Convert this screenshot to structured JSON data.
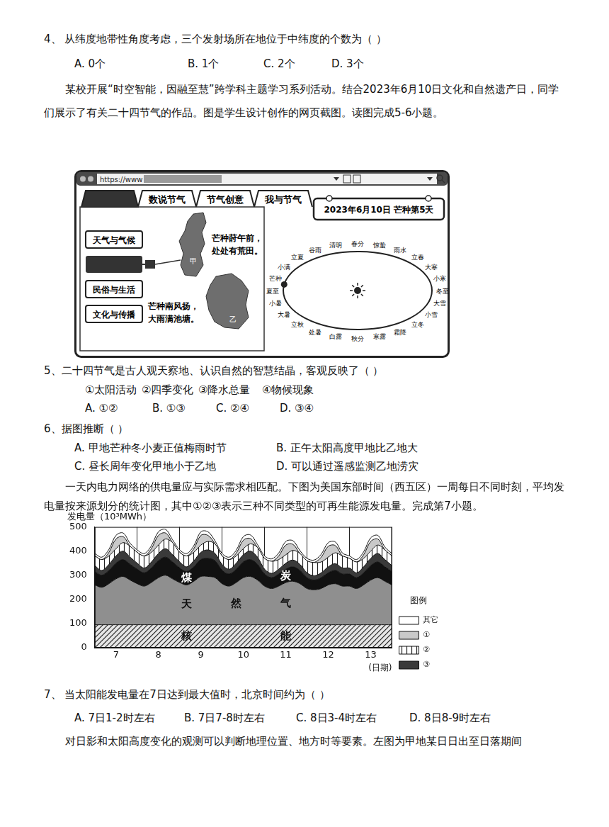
{
  "q4": {
    "stem": "4、 从纬度地带性角度考虑，三个发射场所在地位于中纬度的个数为（    ）",
    "options": [
      "A. 0个",
      "B. 1个",
      "C. 2个",
      "D. 3个"
    ]
  },
  "intro_56": "某校开展“时空智能，因融至慧”跨学科主题学习系列活动。结合2023年6月10日文化和自然遗产日，同学们展示了有关二十四节气的作品。图是学生设计创作的网页截图。读图完成5-6小题。",
  "webpage": {
    "url": "https://www",
    "tabs": [
      null,
      "数说节气",
      "节气创意",
      "我与节气"
    ],
    "date_box": "2023年6月10日  芒种第5天",
    "menu": [
      "天气与气候",
      null,
      "民俗与生活",
      "文化与传播"
    ],
    "regions": [
      {
        "label": "甲",
        "verse": [
          "芒种莳午前，",
          "处处有荒田。"
        ]
      },
      {
        "label": "乙",
        "verse": [
          "芒种南风扬，",
          "大雨满池塘。"
        ]
      }
    ],
    "solar_terms": [
      "夏至",
      "芒种",
      "小满",
      "立夏",
      "谷雨",
      "清明",
      "春分",
      "惊蛰",
      "雨水",
      "立春",
      "大寒",
      "小寒",
      "冬至",
      "大雪",
      "小雪",
      "立冬",
      "霜降",
      "寒露",
      "秋分",
      "白露",
      "处暑",
      "立秋",
      "大暑",
      "小暑"
    ]
  },
  "q5": {
    "stem": "5、二十四节气是古人观天察地、认识自然的智慧结晶，客观反映了（    ）",
    "items": [
      "①太阳活动",
      "②四季变化",
      "③降水总量",
      "④物候现象"
    ],
    "options": [
      "A. ①②",
      "B. ①③",
      "C. ②④",
      "D. ③④"
    ]
  },
  "q6": {
    "stem": "6、据图推断（    ）",
    "options": [
      "A. 甲地芒种冬小麦正值梅雨时节",
      "B. 正午太阳高度甲地比乙地大",
      "C. 昼长周年变化甲地小于乙地",
      "D. 可以通过遥感监测乙地涝灾"
    ]
  },
  "intro_7": "一天内电力网络的供电量应与实际需求相匹配。下图为美国东部时间（西五区）一周每日不同时刻，平均发电量按来源划分的统计图，其中①②③表示三种不同类型的可再生能源发电量。完成第7小题。",
  "chart_data": {
    "type": "stacked_area",
    "y_label": "发电量（10³MWh）",
    "x_label": "(日期)",
    "categories": [
      null,
      null,
      null,
      "7",
      null,
      null,
      null,
      null,
      null,
      "8",
      null,
      null,
      null,
      null,
      null,
      "9",
      null,
      null,
      null,
      null,
      null,
      "10",
      null,
      null,
      null,
      null,
      null,
      "11",
      null,
      null,
      null,
      null,
      null,
      "12",
      null,
      null,
      null,
      null,
      null,
      "13",
      null,
      null,
      null
    ],
    "stacked": true,
    "grid": true,
    "legend": "right",
    "legend_title": "图例",
    "annotations": [
      "核能",
      "天然气",
      "煤炭"
    ],
    "ylim": [
      0,
      500
    ],
    "yticks": [
      0,
      100,
      200,
      300,
      400,
      500
    ],
    "series": [
      {
        "name": "核能",
        "color": "#e6e6e6",
        "values": [
          95,
          95,
          95,
          95,
          95,
          95,
          95,
          95,
          95,
          95,
          95,
          95,
          95,
          95,
          95,
          95,
          95,
          95,
          95,
          95,
          95,
          95,
          95,
          95,
          95,
          95,
          95,
          95,
          95,
          95,
          95,
          95,
          95,
          95,
          95,
          95,
          95,
          95,
          95,
          95,
          95,
          95,
          95
        ]
      },
      {
        "name": "天然气",
        "color": "#8f8f8f",
        "values": [
          165,
          155,
          170,
          190,
          200,
          185,
          170,
          160,
          175,
          195,
          205,
          190,
          175,
          165,
          180,
          200,
          200,
          195,
          170,
          160,
          175,
          195,
          200,
          185,
          160,
          150,
          160,
          175,
          180,
          170,
          150,
          145,
          150,
          165,
          170,
          160,
          160,
          150,
          165,
          185,
          195,
          180,
          165
        ]
      },
      {
        "name": "煤炭",
        "color": "#111111",
        "values": [
          55,
          50,
          55,
          65,
          70,
          65,
          60,
          55,
          60,
          70,
          75,
          70,
          60,
          55,
          60,
          70,
          75,
          70,
          55,
          50,
          55,
          65,
          70,
          65,
          50,
          45,
          50,
          55,
          60,
          55,
          45,
          40,
          45,
          50,
          55,
          50,
          50,
          45,
          50,
          60,
          65,
          60,
          55
        ]
      },
      {
        "name": "③",
        "color": "#3a3a3a",
        "values": [
          25,
          20,
          25,
          30,
          35,
          30,
          25,
          20,
          25,
          30,
          35,
          30,
          25,
          20,
          25,
          30,
          35,
          30,
          25,
          20,
          25,
          30,
          35,
          30,
          20,
          18,
          20,
          25,
          28,
          25,
          20,
          18,
          20,
          25,
          28,
          25,
          25,
          20,
          25,
          30,
          35,
          30,
          25
        ]
      },
      {
        "name": "②",
        "color": "#ffffff",
        "values": [
          40,
          45,
          35,
          30,
          35,
          45,
          45,
          50,
          40,
          35,
          40,
          50,
          40,
          45,
          35,
          30,
          35,
          40,
          35,
          40,
          30,
          25,
          30,
          40,
          45,
          50,
          40,
          35,
          40,
          45,
          50,
          55,
          45,
          40,
          45,
          50,
          40,
          45,
          35,
          30,
          35,
          40,
          40
        ]
      },
      {
        "name": "①",
        "color": "#c9c9c9",
        "values": [
          0,
          0,
          15,
          40,
          25,
          0,
          0,
          0,
          15,
          40,
          25,
          0,
          0,
          0,
          15,
          40,
          25,
          0,
          0,
          0,
          12,
          35,
          22,
          0,
          0,
          0,
          15,
          40,
          25,
          0,
          0,
          0,
          20,
          45,
          30,
          0,
          0,
          0,
          15,
          40,
          25,
          0,
          0
        ]
      },
      {
        "name": "其它",
        "color": "#ffffff",
        "values": [
          10,
          10,
          12,
          15,
          15,
          12,
          10,
          10,
          12,
          15,
          15,
          12,
          10,
          10,
          12,
          15,
          15,
          12,
          10,
          10,
          12,
          15,
          15,
          12,
          10,
          10,
          12,
          15,
          15,
          12,
          10,
          10,
          12,
          15,
          15,
          12,
          10,
          10,
          12,
          15,
          15,
          12,
          10
        ]
      }
    ]
  },
  "q7": {
    "stem": "7、 当太阳能发电量在7日达到最大值时，北京时间约为（    ）",
    "options": [
      "A. 7日1-2时左右",
      "B. 7日7-8时左右",
      "C. 8日3-4时左右",
      "D. 8日8-9时左右"
    ]
  },
  "intro_next": "对日影和太阳高度变化的观测可以判断地理位置、地方时等要素。左图为甲地某日日出至日落期间"
}
